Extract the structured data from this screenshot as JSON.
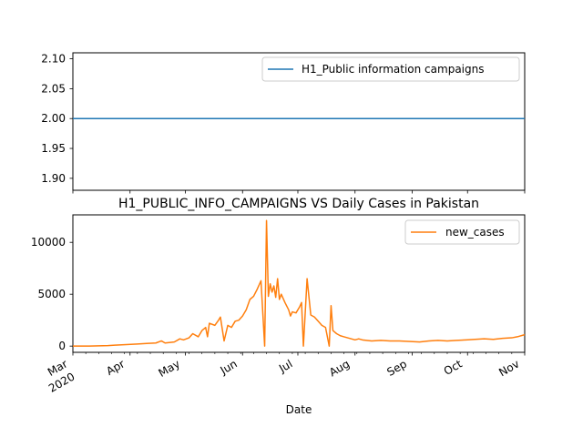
{
  "chart_data": [
    {
      "type": "line",
      "title": "",
      "xlabel": "",
      "ylabel": "",
      "ylim": [
        1.88,
        2.11
      ],
      "yticks": [
        "1.90",
        "1.95",
        "2.00",
        "2.05",
        "2.10"
      ],
      "ytick_values": [
        1.9,
        1.95,
        2.0,
        2.05,
        2.1
      ],
      "legend_position": "top-right",
      "grid": false,
      "series": [
        {
          "name": "H1_Public information campaigns",
          "color": "#1f77b4",
          "x": [
            "2020-03-01",
            "2020-11-01"
          ],
          "y": [
            2.0,
            2.0
          ]
        }
      ]
    },
    {
      "type": "line",
      "title": "H1_PUBLIC_INFO_CAMPAIGNS VS Daily Cases in Pakistan",
      "xlabel": "Date",
      "ylabel": "",
      "ylim": [
        -600,
        12650
      ],
      "yticks": [
        "0",
        "5000",
        "10000"
      ],
      "ytick_values": [
        0,
        5000,
        10000
      ],
      "xlim": [
        "2020-03-01",
        "2020-11-01"
      ],
      "xticks": [
        {
          "date": "2020-03-01",
          "label": "Mar",
          "sub": "2020"
        },
        {
          "date": "2020-04-01",
          "label": "Apr",
          "sub": ""
        },
        {
          "date": "2020-05-01",
          "label": "May",
          "sub": ""
        },
        {
          "date": "2020-06-01",
          "label": "Jun",
          "sub": ""
        },
        {
          "date": "2020-07-01",
          "label": "Jul",
          "sub": ""
        },
        {
          "date": "2020-08-01",
          "label": "Aug",
          "sub": ""
        },
        {
          "date": "2020-09-01",
          "label": "Sep",
          "sub": ""
        },
        {
          "date": "2020-10-01",
          "label": "Oct",
          "sub": ""
        },
        {
          "date": "2020-11-01",
          "label": "Nov",
          "sub": ""
        }
      ],
      "legend_position": "top-right",
      "grid": false,
      "series": [
        {
          "name": "new_cases",
          "color": "#ff7f0e",
          "x": [
            "2020-03-01",
            "2020-03-10",
            "2020-03-20",
            "2020-03-25",
            "2020-03-30",
            "2020-04-05",
            "2020-04-10",
            "2020-04-15",
            "2020-04-18",
            "2020-04-20",
            "2020-04-25",
            "2020-04-28",
            "2020-04-30",
            "2020-05-03",
            "2020-05-05",
            "2020-05-08",
            "2020-05-10",
            "2020-05-12",
            "2020-05-13",
            "2020-05-14",
            "2020-05-17",
            "2020-05-19",
            "2020-05-20",
            "2020-05-22",
            "2020-05-24",
            "2020-05-26",
            "2020-05-28",
            "2020-05-30",
            "2020-06-01",
            "2020-06-03",
            "2020-06-05",
            "2020-06-07",
            "2020-06-09",
            "2020-06-11",
            "2020-06-13",
            "2020-06-14",
            "2020-06-15",
            "2020-06-16",
            "2020-06-17",
            "2020-06-18",
            "2020-06-19",
            "2020-06-20",
            "2020-06-21",
            "2020-06-22",
            "2020-06-24",
            "2020-06-26",
            "2020-06-27",
            "2020-06-28",
            "2020-06-30",
            "2020-07-02",
            "2020-07-03",
            "2020-07-04",
            "2020-07-06",
            "2020-07-08",
            "2020-07-10",
            "2020-07-12",
            "2020-07-14",
            "2020-07-16",
            "2020-07-18",
            "2020-07-19",
            "2020-07-20",
            "2020-07-22",
            "2020-07-24",
            "2020-07-26",
            "2020-07-28",
            "2020-07-30",
            "2020-08-01",
            "2020-08-03",
            "2020-08-05",
            "2020-08-10",
            "2020-08-15",
            "2020-08-20",
            "2020-08-25",
            "2020-08-30",
            "2020-09-05",
            "2020-09-10",
            "2020-09-15",
            "2020-09-20",
            "2020-09-25",
            "2020-09-30",
            "2020-10-05",
            "2020-10-10",
            "2020-10-15",
            "2020-10-20",
            "2020-10-25",
            "2020-10-28",
            "2020-11-01"
          ],
          "y": [
            0,
            0,
            50,
            100,
            150,
            200,
            250,
            300,
            500,
            300,
            400,
            700,
            600,
            800,
            1200,
            900,
            1500,
            1800,
            900,
            2200,
            2000,
            2500,
            2800,
            500,
            2000,
            1800,
            2400,
            2500,
            2900,
            3500,
            4500,
            4800,
            5500,
            6300,
            0,
            12100,
            4800,
            6000,
            5200,
            5800,
            4700,
            6500,
            4500,
            5000,
            4200,
            3500,
            2900,
            3300,
            3200,
            3800,
            4200,
            0,
            6500,
            3000,
            2800,
            2400,
            2000,
            1800,
            0,
            3900,
            1500,
            1200,
            1000,
            900,
            800,
            700,
            600,
            700,
            600,
            500,
            550,
            500,
            500,
            450,
            400,
            500,
            550,
            500,
            550,
            600,
            650,
            700,
            650,
            750,
            800,
            900,
            1100
          ]
        }
      ]
    }
  ]
}
